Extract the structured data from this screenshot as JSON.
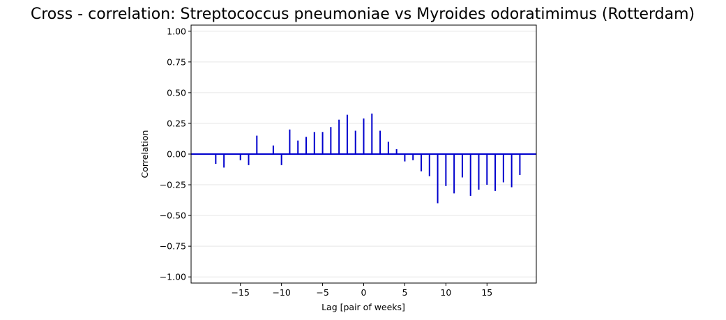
{
  "chart_data": {
    "type": "bar",
    "title": "Cross - correlation: Streptococcus pneumoniae vs Myroides odoratimimus (Rotterdam)",
    "xlabel": "Lag [pair of weeks]",
    "ylabel": "Correlation",
    "xlim": [
      -21,
      21
    ],
    "ylim": [
      -1.05,
      1.05
    ],
    "grid": "horizontal",
    "x_ticks": [
      -15,
      -10,
      -5,
      0,
      5,
      10,
      15
    ],
    "x_tick_labels": [
      "−15",
      "−10",
      "−5",
      "0",
      "5",
      "10",
      "15"
    ],
    "y_ticks": [
      -1.0,
      -0.75,
      -0.5,
      -0.25,
      0.0,
      0.25,
      0.5,
      0.75,
      1.0
    ],
    "y_tick_labels": [
      "−1.00",
      "−0.75",
      "−0.50",
      "−0.25",
      "0.00",
      "0.25",
      "0.50",
      "0.75",
      "1.00"
    ],
    "x": [
      -18,
      -17,
      -16,
      -15,
      -14,
      -13,
      -12,
      -11,
      -10,
      -9,
      -8,
      -7,
      -6,
      -5,
      -4,
      -3,
      -2,
      -1,
      0,
      1,
      2,
      3,
      4,
      5,
      6,
      7,
      8,
      9,
      10,
      11,
      12,
      13,
      14,
      15,
      16,
      17,
      18,
      19
    ],
    "values": [
      -0.08,
      -0.11,
      0.0,
      -0.05,
      -0.09,
      0.15,
      0.0,
      0.07,
      -0.09,
      0.2,
      0.11,
      0.14,
      0.18,
      0.18,
      0.22,
      0.28,
      0.32,
      0.19,
      0.29,
      0.33,
      0.19,
      0.1,
      0.04,
      -0.06,
      -0.05,
      -0.14,
      -0.18,
      -0.4,
      -0.26,
      -0.32,
      -0.19,
      -0.34,
      -0.29,
      -0.25,
      -0.3,
      -0.23,
      -0.27,
      -0.17
    ],
    "colors": {
      "bars": "#0000cd",
      "zero_line": "#0000cd",
      "grid": "#e6e6e6",
      "axes": "#000000"
    }
  }
}
